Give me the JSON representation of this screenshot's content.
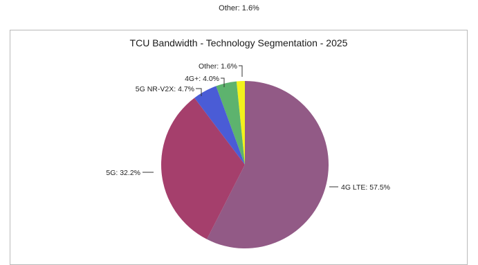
{
  "top_caption": "Other: 1.6%",
  "chart_data": {
    "type": "pie",
    "title": "TCU Bandwidth - Technology Segmentation - 2025",
    "slices": [
      {
        "name": "4G LTE",
        "value": 57.5,
        "label": "4G LTE: 57.5%",
        "color": "#925a86"
      },
      {
        "name": "5G",
        "value": 32.2,
        "label": "5G: 32.2%",
        "color": "#a53f6c"
      },
      {
        "name": "5G NR-V2X",
        "value": 4.7,
        "label": "5G NR-V2X: 4.7%",
        "color": "#4a5cd6"
      },
      {
        "name": "4G+",
        "value": 4.0,
        "label": "4G+: 4.0%",
        "color": "#5db36e"
      },
      {
        "name": "Other",
        "value": 1.6,
        "label": "Other: 1.6%",
        "color": "#f2f21c"
      }
    ]
  }
}
